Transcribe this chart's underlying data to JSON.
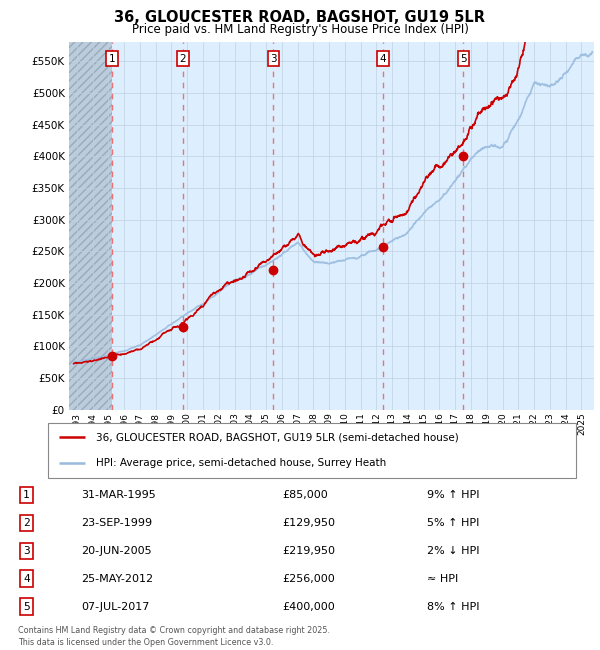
{
  "title": "36, GLOUCESTER ROAD, BAGSHOT, GU19 5LR",
  "subtitle": "Price paid vs. HM Land Registry's House Price Index (HPI)",
  "sale_label": "36, GLOUCESTER ROAD, BAGSHOT, GU19 5LR (semi-detached house)",
  "hpi_label": "HPI: Average price, semi-detached house, Surrey Heath",
  "footer": "Contains HM Land Registry data © Crown copyright and database right 2025.\nThis data is licensed under the Open Government Licence v3.0.",
  "sales": [
    {
      "num": 1,
      "date_str": "31-MAR-1995",
      "date_dec": 1995.25,
      "price": 85000,
      "hpi_rel": "9% ↑ HPI"
    },
    {
      "num": 2,
      "date_str": "23-SEP-1999",
      "date_dec": 1999.73,
      "price": 129950,
      "hpi_rel": "5% ↑ HPI"
    },
    {
      "num": 3,
      "date_str": "20-JUN-2005",
      "date_dec": 2005.47,
      "price": 219950,
      "hpi_rel": "2% ↓ HPI"
    },
    {
      "num": 4,
      "date_str": "25-MAY-2012",
      "date_dec": 2012.4,
      "price": 256000,
      "hpi_rel": "≈ HPI"
    },
    {
      "num": 5,
      "date_str": "07-JUL-2017",
      "date_dec": 2017.52,
      "price": 400000,
      "hpi_rel": "8% ↑ HPI"
    }
  ],
  "ylim": [
    0,
    580000
  ],
  "yticks": [
    0,
    50000,
    100000,
    150000,
    200000,
    250000,
    300000,
    350000,
    400000,
    450000,
    500000,
    550000
  ],
  "xlim_start": 1992.5,
  "xlim_end": 2025.8,
  "bg_chart": "#ddeeff",
  "hatch_color": "#c8d8e8",
  "sale_color": "#cc0000",
  "hpi_color": "#99bbdd",
  "grid_color": "#c0d0e0",
  "vline_color": "#ee6666"
}
